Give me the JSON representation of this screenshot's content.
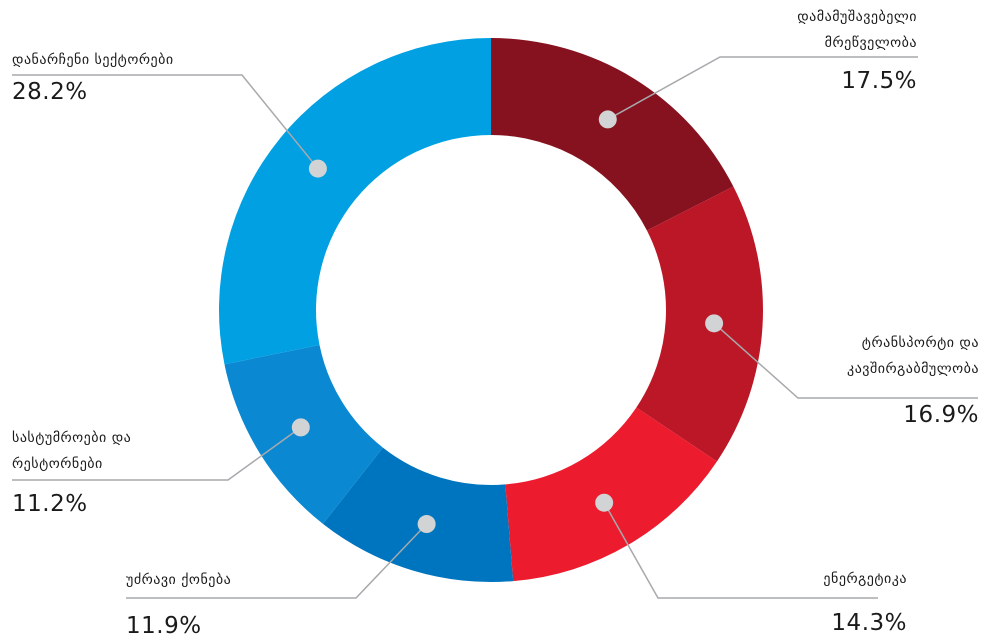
{
  "chart_data": {
    "type": "pie",
    "donut": true,
    "slices": [
      {
        "label_line1": "დამამუშავებელი",
        "label_line2": "მრეწველობა",
        "percent_label": "17.5%",
        "value": 17.5,
        "color": "#86121f"
      },
      {
        "label_line1": "ტრანსპორტი და",
        "label_line2": "კავშირგაბმულობა",
        "percent_label": "16.9%",
        "value": 16.9,
        "color": "#bc1727"
      },
      {
        "label_line1": "ენერგეტიკა",
        "label_line2": "",
        "percent_label": "14.3%",
        "value": 14.3,
        "color": "#ec1c2e"
      },
      {
        "label_line1": "უძრავი ქონება",
        "label_line2": "",
        "percent_label": "11.9%",
        "value": 11.9,
        "color": "#0075bf"
      },
      {
        "label_line1": "სასტუმროები და",
        "label_line2": "რესტორნები",
        "percent_label": "11.2%",
        "value": 11.2,
        "color": "#0a88d2"
      },
      {
        "label_line1": "დანარჩენი სექტორები",
        "label_line2": "",
        "percent_label": "28.2%",
        "value": 28.2,
        "color": "#00a0e3"
      }
    ],
    "leader_color": "#a7a9ac",
    "marker_color": "#d1d3d4"
  }
}
